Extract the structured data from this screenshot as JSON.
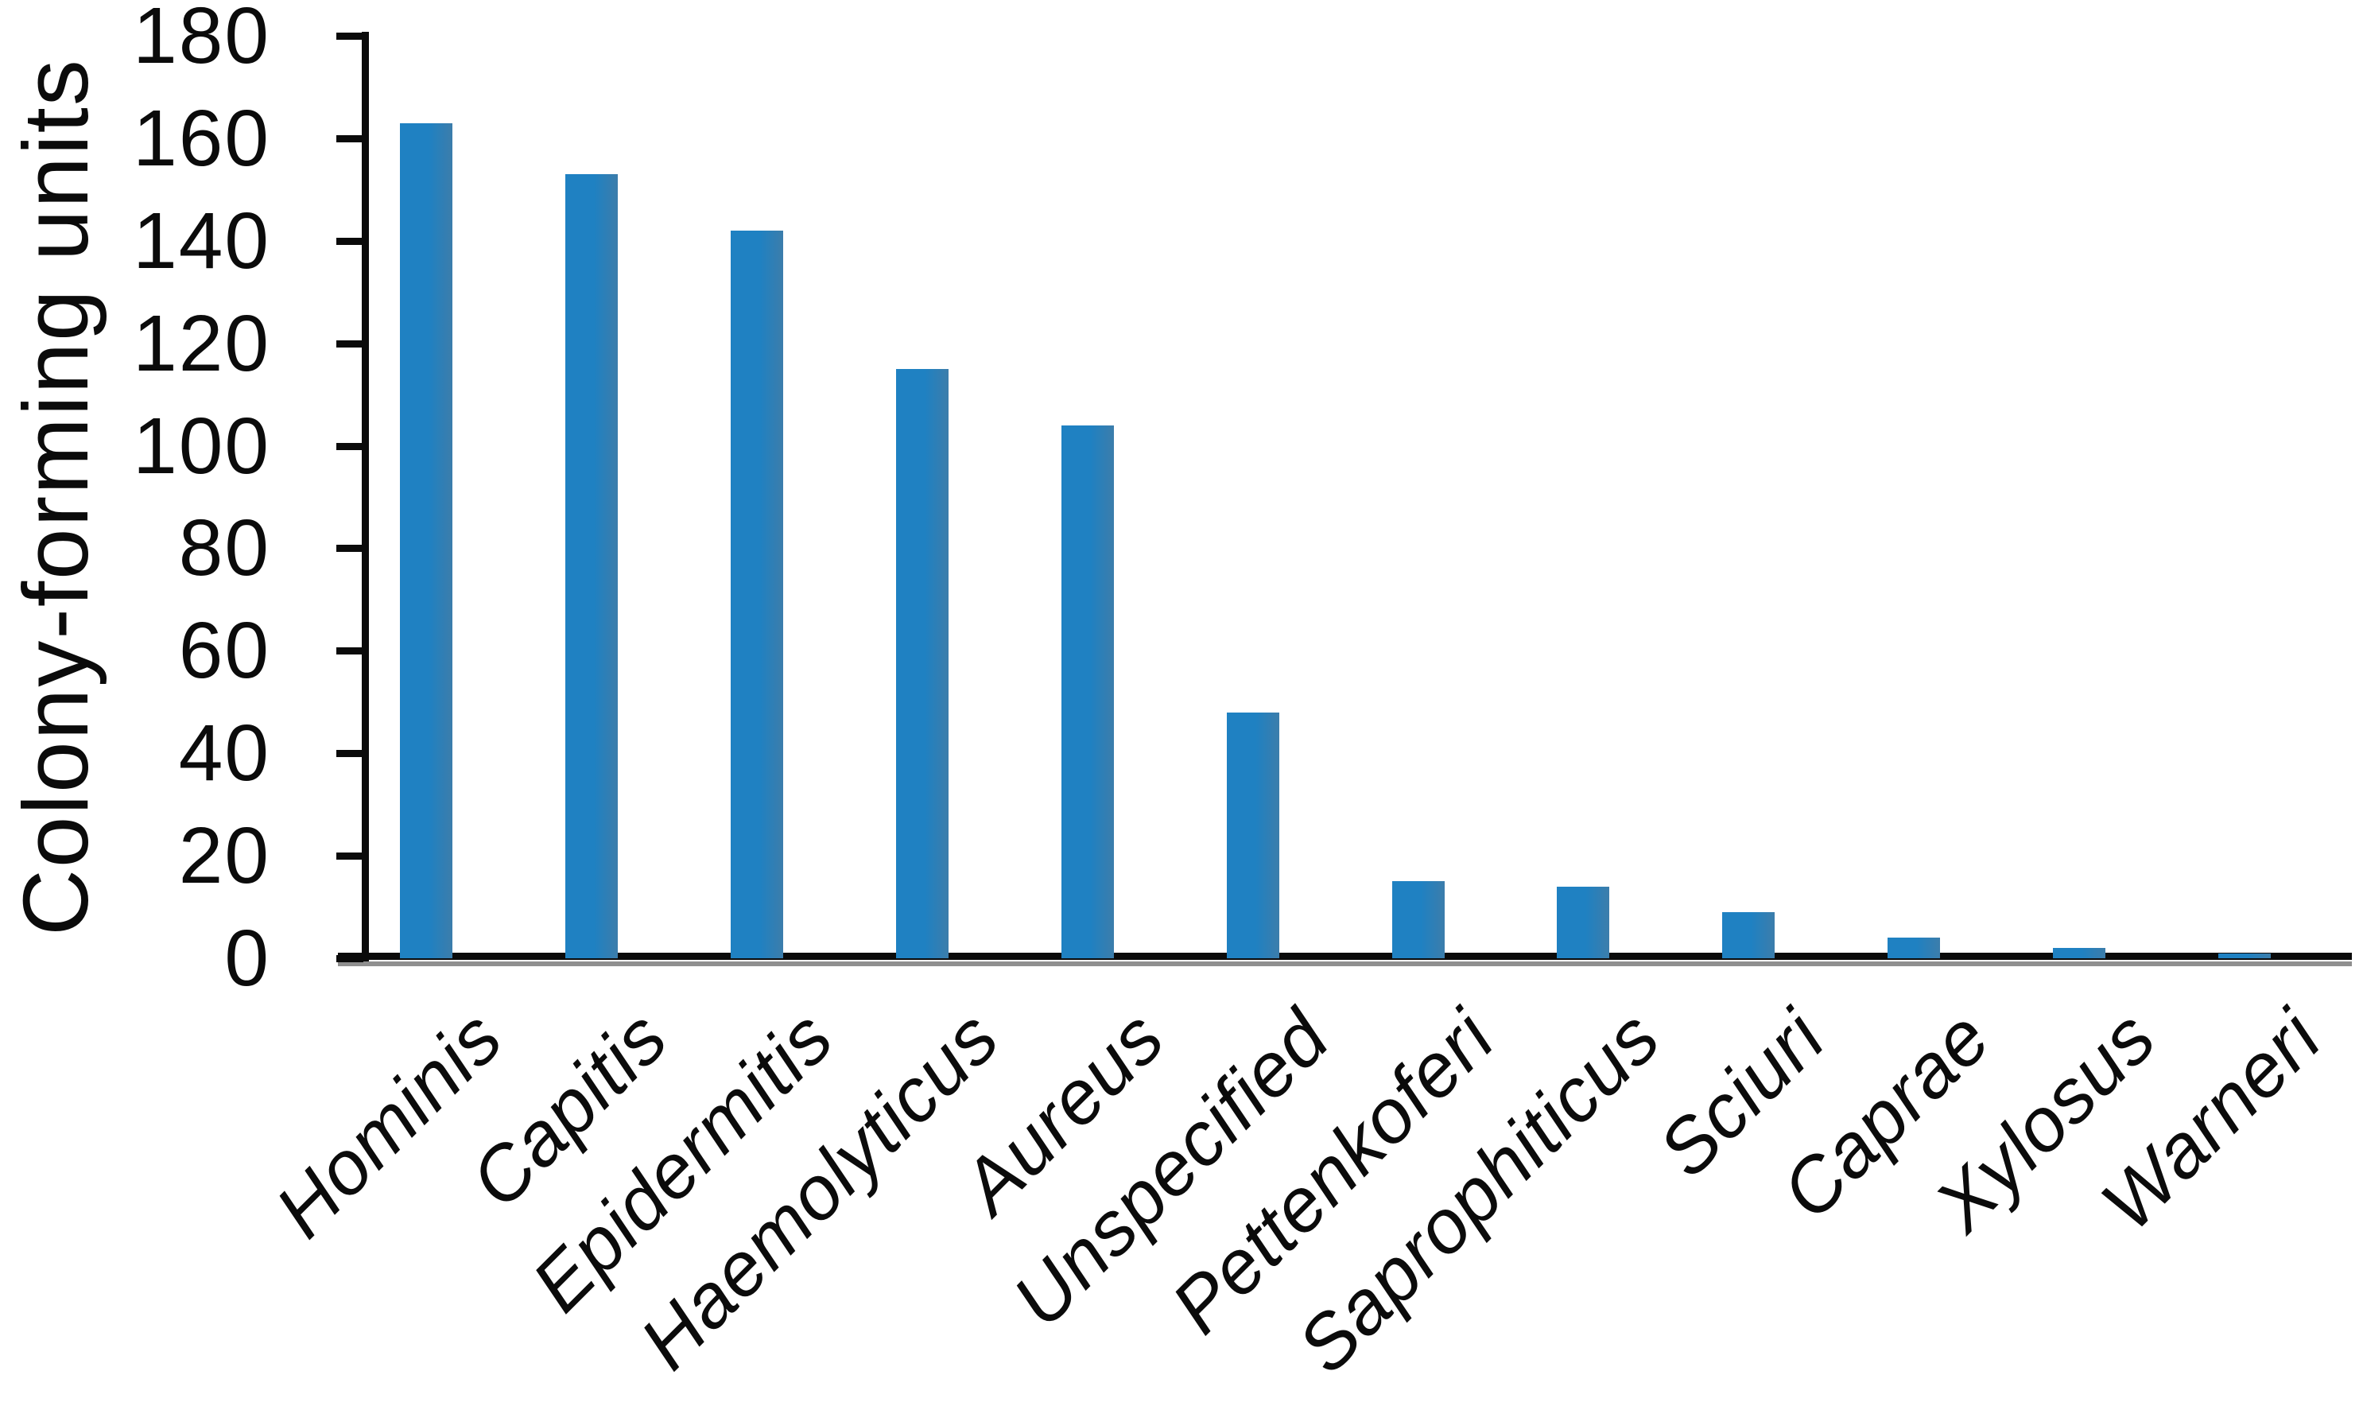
{
  "figure": {
    "background": "#ffffff"
  },
  "chart_data": {
    "type": "bar",
    "title": "",
    "xlabel": "",
    "ylabel": "Colony-forming units",
    "categories": [
      "Hominis",
      "Capitis",
      "Epidermitis",
      "Haemolyticus",
      "Aureus",
      "Unspecified",
      "Pettenkoferi",
      "Saprophiticus",
      "Sciuri",
      "Caprae",
      "Xylosus",
      "Warneri"
    ],
    "values": [
      163,
      153,
      142,
      115,
      104,
      48,
      15,
      14,
      9,
      4,
      2,
      1
    ],
    "ylim": [
      0,
      180
    ],
    "yticks": [
      0,
      20,
      40,
      60,
      80,
      100,
      120,
      140,
      160,
      180
    ],
    "grid": false,
    "legend_position": "none",
    "bar_color": "#1f81c2",
    "bar_color_edge": "#3c7dab",
    "axis_color": "#0b0b0b",
    "baseline_shadow_color": "#8f8f8f",
    "category_label_style": "italic",
    "category_label_rotation_deg": 45
  }
}
